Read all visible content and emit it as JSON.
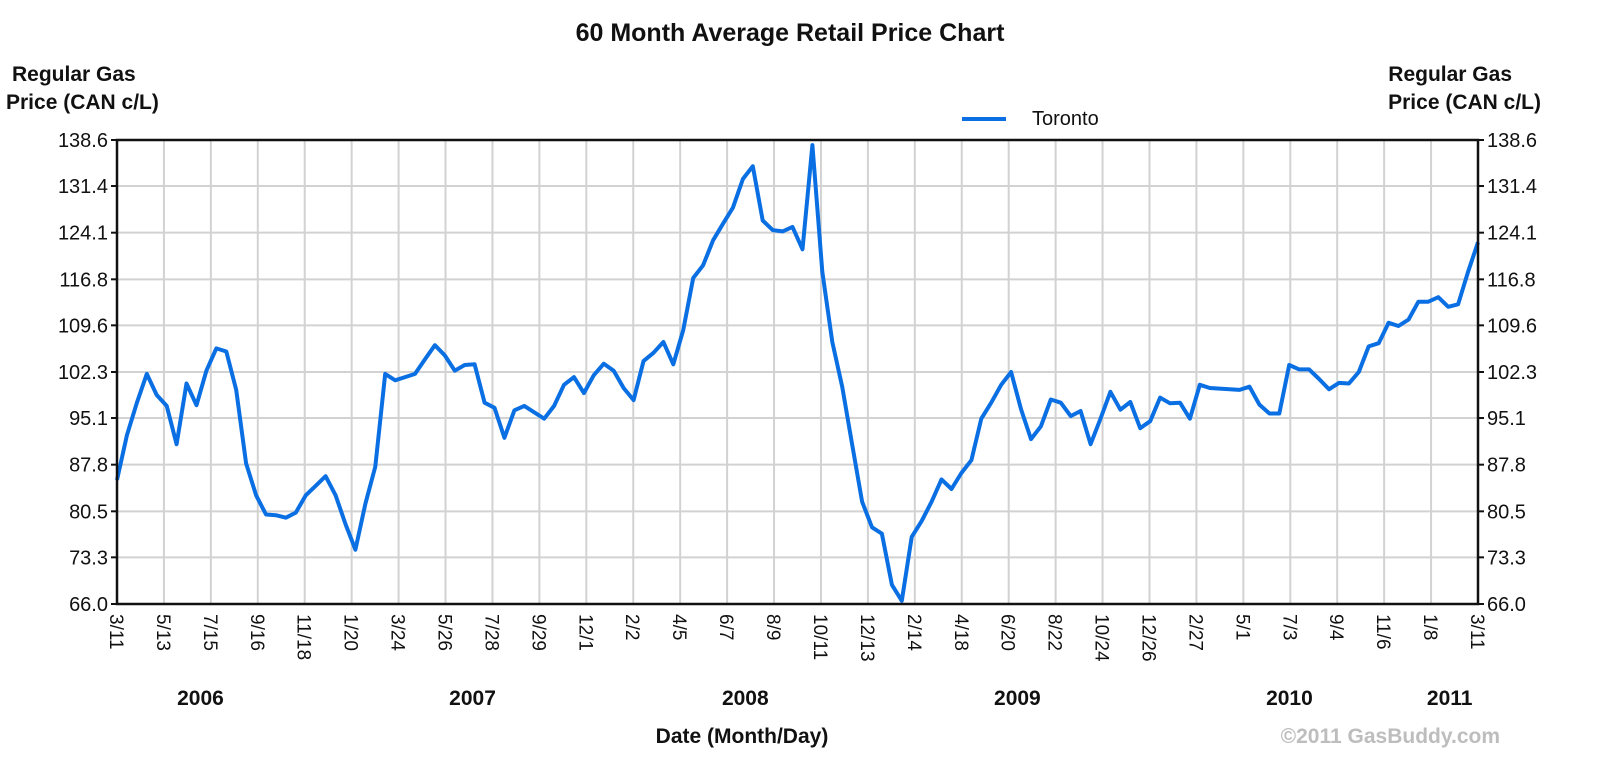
{
  "chart_data": {
    "type": "line",
    "title": "60 Month Average Retail Price Chart",
    "ylabel_left": [
      "Regular Gas",
      "Price (CAN c/L)"
    ],
    "ylabel_right": [
      "Regular Gas",
      "Price (CAN c/L)"
    ],
    "xlabel": "Date (Month/Day)",
    "ylim": [
      66.0,
      138.6
    ],
    "yticks": [
      "66.0",
      "73.3",
      "80.5",
      "87.8",
      "95.1",
      "102.3",
      "109.6",
      "116.8",
      "124.1",
      "131.4",
      "138.6"
    ],
    "xlim": [
      "2006-03-11",
      "2011-03-11"
    ],
    "xticks": [
      "3/11",
      "5/13",
      "7/15",
      "9/16",
      "11/18",
      "1/20",
      "3/24",
      "5/26",
      "7/28",
      "9/29",
      "12/1",
      "2/2",
      "4/5",
      "6/7",
      "8/9",
      "10/11",
      "12/13",
      "2/14",
      "4/18",
      "6/20",
      "8/22",
      "10/24",
      "12/26",
      "2/27",
      "5/1",
      "7/3",
      "9/4",
      "11/6",
      "1/8",
      "3/11"
    ],
    "years": [
      {
        "label": "2006",
        "date": "2006-07-01"
      },
      {
        "label": "2007",
        "date": "2007-07-01"
      },
      {
        "label": "2008",
        "date": "2008-07-01"
      },
      {
        "label": "2009",
        "date": "2009-07-01"
      },
      {
        "label": "2010",
        "date": "2010-07-01"
      },
      {
        "label": "2011",
        "date": "2011-02-01"
      }
    ],
    "grid": true,
    "legend_position": "top-right",
    "series": [
      {
        "name": "Toronto",
        "color": "#0a6fe3",
        "sampling": "evenly spaced across xlim",
        "values": [
          85.4,
          92.4,
          97.5,
          102.0,
          98.7,
          97.0,
          91.0,
          100.5,
          97.1,
          102.5,
          106.0,
          105.5,
          99.5,
          88.0,
          83.0,
          80.0,
          79.9,
          79.5,
          80.3,
          83.0,
          84.5,
          86.0,
          83.0,
          78.5,
          74.5,
          81.7,
          87.5,
          102.0,
          101.0,
          101.5,
          102.0,
          104.3,
          106.5,
          104.9,
          102.5,
          103.4,
          103.5,
          97.5,
          96.7,
          92.0,
          96.3,
          97.0,
          96.0,
          95.0,
          97.0,
          100.3,
          101.5,
          99.0,
          101.8,
          103.6,
          102.5,
          99.8,
          97.9,
          104.0,
          105.3,
          107.0,
          103.5,
          108.9,
          117.0,
          119.0,
          122.9,
          125.5,
          128.0,
          132.5,
          134.5,
          126.0,
          124.5,
          124.3,
          125.0,
          121.5,
          137.8,
          118.0,
          107.0,
          100.0,
          91.0,
          82.0,
          78.0,
          77.0,
          69.0,
          66.5,
          76.5,
          79.0,
          82.0,
          85.5,
          84.0,
          86.5,
          88.5,
          95.0,
          97.5,
          100.3,
          102.3,
          96.5,
          91.8,
          93.8,
          98.0,
          97.5,
          95.4,
          96.2,
          91.0,
          95.0,
          99.2,
          96.4,
          97.6,
          93.5,
          94.6,
          98.3,
          97.4,
          97.5,
          95.0,
          100.3,
          99.8,
          99.7,
          99.6,
          99.5,
          100.0,
          97.2,
          95.8,
          95.8,
          103.4,
          102.7,
          102.7,
          101.2,
          99.6,
          100.6,
          100.5,
          102.3,
          106.3,
          106.8,
          110.0,
          109.5,
          110.5,
          113.3,
          113.3,
          114.0,
          112.5,
          112.9,
          118.0,
          122.6
        ]
      }
    ]
  },
  "credit": "©2011 GasBuddy.com"
}
